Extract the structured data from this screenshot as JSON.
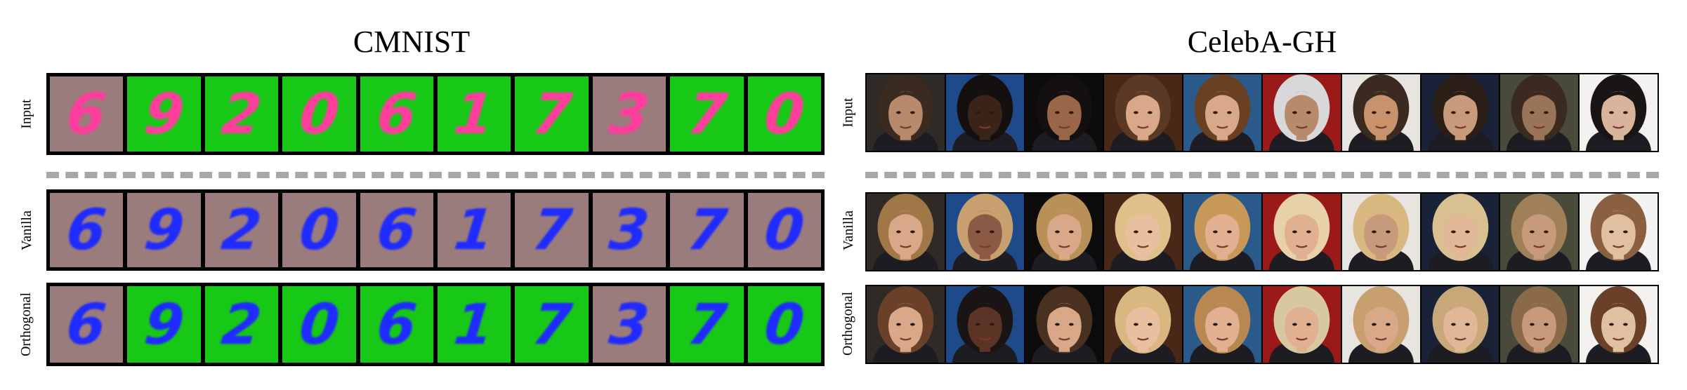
{
  "panels": {
    "cmnist": {
      "title": "CMNIST",
      "rows": [
        {
          "label": "Input",
          "tiles": [
            {
              "digit": "6",
              "bg": "#9b7c7c",
              "fg": "#ff3d9c"
            },
            {
              "digit": "9",
              "bg": "#17c817",
              "fg": "#ff3d9c"
            },
            {
              "digit": "2",
              "bg": "#17c817",
              "fg": "#ff3d9c"
            },
            {
              "digit": "0",
              "bg": "#17c817",
              "fg": "#ff3d9c"
            },
            {
              "digit": "6",
              "bg": "#17c817",
              "fg": "#ff3d9c"
            },
            {
              "digit": "1",
              "bg": "#17c817",
              "fg": "#ff3d9c"
            },
            {
              "digit": "7",
              "bg": "#17c817",
              "fg": "#ff3d9c"
            },
            {
              "digit": "3",
              "bg": "#9b7c7c",
              "fg": "#ff3d9c"
            },
            {
              "digit": "7",
              "bg": "#17c817",
              "fg": "#ff3d9c"
            },
            {
              "digit": "0",
              "bg": "#17c817",
              "fg": "#ff3d9c"
            }
          ]
        },
        {
          "label": "Vanilla",
          "tiles": [
            {
              "digit": "6",
              "bg": "#9b7c7c",
              "fg": "#1f2bff"
            },
            {
              "digit": "9",
              "bg": "#9b7c7c",
              "fg": "#1f2bff"
            },
            {
              "digit": "2",
              "bg": "#9b7c7c",
              "fg": "#1f2bff"
            },
            {
              "digit": "0",
              "bg": "#9b7c7c",
              "fg": "#1f2bff"
            },
            {
              "digit": "6",
              "bg": "#9b7c7c",
              "fg": "#1f2bff"
            },
            {
              "digit": "1",
              "bg": "#9b7c7c",
              "fg": "#1f2bff"
            },
            {
              "digit": "7",
              "bg": "#9b7c7c",
              "fg": "#1f2bff"
            },
            {
              "digit": "3",
              "bg": "#9b7c7c",
              "fg": "#1f2bff"
            },
            {
              "digit": "7",
              "bg": "#9b7c7c",
              "fg": "#1f2bff"
            },
            {
              "digit": "0",
              "bg": "#9b7c7c",
              "fg": "#1f2bff"
            }
          ]
        },
        {
          "label": "Orthogonal",
          "tiles": [
            {
              "digit": "6",
              "bg": "#9b7c7c",
              "fg": "#1f2bff"
            },
            {
              "digit": "9",
              "bg": "#17c817",
              "fg": "#1f2bff"
            },
            {
              "digit": "2",
              "bg": "#17c817",
              "fg": "#1f2bff"
            },
            {
              "digit": "0",
              "bg": "#17c817",
              "fg": "#1f2bff"
            },
            {
              "digit": "6",
              "bg": "#17c817",
              "fg": "#1f2bff"
            },
            {
              "digit": "1",
              "bg": "#17c817",
              "fg": "#1f2bff"
            },
            {
              "digit": "7",
              "bg": "#17c817",
              "fg": "#1f2bff"
            },
            {
              "digit": "3",
              "bg": "#9b7c7c",
              "fg": "#1f2bff"
            },
            {
              "digit": "7",
              "bg": "#17c817",
              "fg": "#1f2bff"
            },
            {
              "digit": "0",
              "bg": "#17c817",
              "fg": "#1f2bff"
            }
          ]
        }
      ]
    },
    "celeba": {
      "title": "CelebA-GH",
      "rows": [
        {
          "label": "Input",
          "tiles": [
            {
              "bg": "#2f2a26",
              "skin": "#b88a6c",
              "hair": "#3a2a20"
            },
            {
              "bg": "#1f4a8a",
              "skin": "#3a2418",
              "hair": "#141010"
            },
            {
              "bg": "#0c0c0c",
              "skin": "#9a6648",
              "hair": "#141010"
            },
            {
              "bg": "#4a2818",
              "skin": "#d8a888",
              "hair": "#5a3a24"
            },
            {
              "bg": "#2a5a8a",
              "skin": "#d8a888",
              "hair": "#6a4022"
            },
            {
              "bg": "#9a1a1a",
              "skin": "#b88a6c",
              "hair": "#d8d8d8"
            },
            {
              "bg": "#e8e4e0",
              "skin": "#c8926c",
              "hair": "#3a2a20"
            },
            {
              "bg": "#1a2238",
              "skin": "#c89a7c",
              "hair": "#2a1e16"
            },
            {
              "bg": "#4a4a3a",
              "skin": "#9a7458",
              "hair": "#3a2a20"
            },
            {
              "bg": "#f4f2f0",
              "skin": "#d8b49a",
              "hair": "#1a1414"
            }
          ]
        },
        {
          "label": "Vanilla",
          "tiles": [
            {
              "bg": "#2f2a26",
              "skin": "#d8a888",
              "hair": "#a07848"
            },
            {
              "bg": "#1f4a8a",
              "skin": "#8a5a44",
              "hair": "#c8a070"
            },
            {
              "bg": "#0c0c0c",
              "skin": "#d8a888",
              "hair": "#b89058"
            },
            {
              "bg": "#4a2818",
              "skin": "#e8c0a0",
              "hair": "#e0c08a"
            },
            {
              "bg": "#2a5a8a",
              "skin": "#e0b090",
              "hair": "#c89858"
            },
            {
              "bg": "#9a1a1a",
              "skin": "#e0b090",
              "hair": "#e8d0a8"
            },
            {
              "bg": "#e8e4e0",
              "skin": "#c89a7c",
              "hair": "#d8b880"
            },
            {
              "bg": "#1a2238",
              "skin": "#e0b898",
              "hair": "#d8c090"
            },
            {
              "bg": "#4a4a3a",
              "skin": "#c89a7c",
              "hair": "#a08058"
            },
            {
              "bg": "#f4f2f0",
              "skin": "#e0c0a0",
              "hair": "#8a6040"
            }
          ]
        },
        {
          "label": "Orthogonal",
          "tiles": [
            {
              "bg": "#2f2a26",
              "skin": "#d8a888",
              "hair": "#6a4028"
            },
            {
              "bg": "#1f4a8a",
              "skin": "#5a3424",
              "hair": "#1a1414"
            },
            {
              "bg": "#0c0c0c",
              "skin": "#d8a888",
              "hair": "#4a3020"
            },
            {
              "bg": "#4a2818",
              "skin": "#e8c0a0",
              "hair": "#d8b880"
            },
            {
              "bg": "#2a5a8a",
              "skin": "#e0b090",
              "hair": "#b88850"
            },
            {
              "bg": "#9a1a1a",
              "skin": "#e0b090",
              "hair": "#d8c8a0"
            },
            {
              "bg": "#e8e4e0",
              "skin": "#d8a888",
              "hair": "#c8a070"
            },
            {
              "bg": "#1a2238",
              "skin": "#e0b898",
              "hair": "#c8a878"
            },
            {
              "bg": "#4a4a3a",
              "skin": "#c89a7c",
              "hair": "#8a6a48"
            },
            {
              "bg": "#f4f2f0",
              "skin": "#e0c0a0",
              "hair": "#6a4028"
            }
          ]
        }
      ]
    }
  }
}
